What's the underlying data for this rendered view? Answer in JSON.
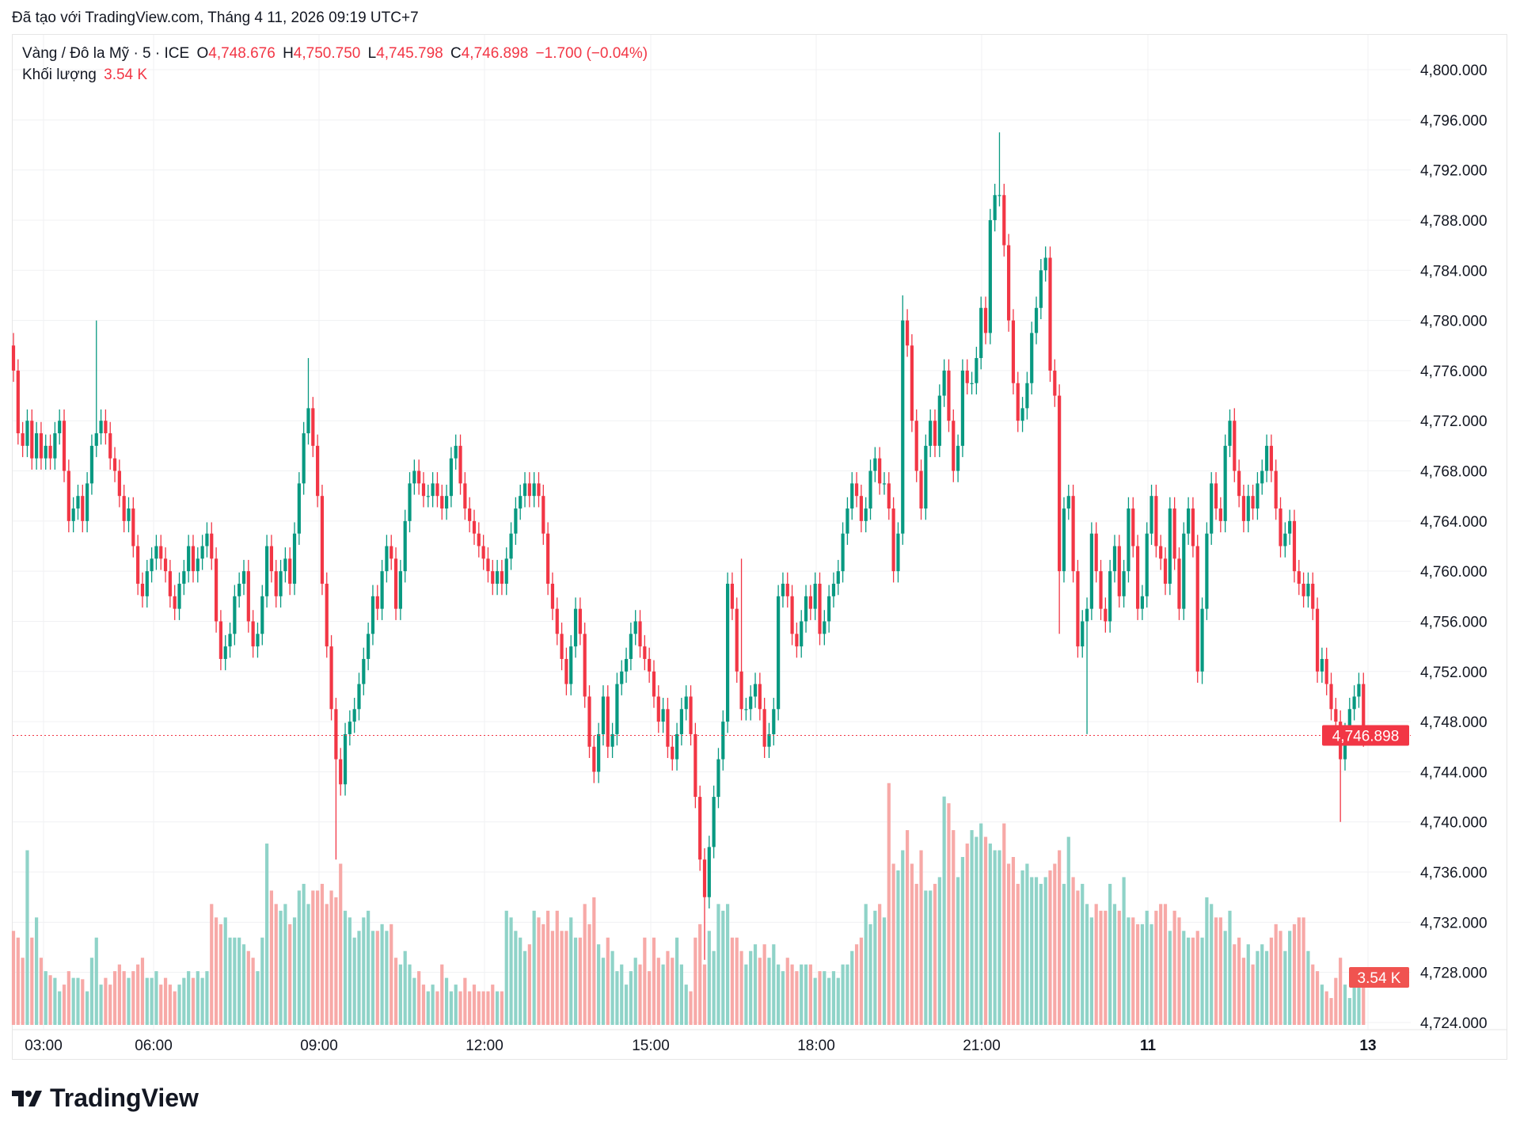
{
  "credit": "Đã tạo với TradingView.com, Tháng 4 11, 2026 09:19 UTC+7",
  "legend": {
    "symbol": "Vàng / Đô la Mỹ · 5 · ICE",
    "o_label": "O",
    "o_value": "4,748.676",
    "h_label": "H",
    "h_value": "4,750.750",
    "l_label": "L",
    "l_value": "4,745.798",
    "c_label": "C",
    "c_value": "4,746.898",
    "change": "−1.700 (−0.04%)",
    "volume_label": "Khối lượng",
    "volume_value": "3.54 K"
  },
  "logo_text": "TradingView",
  "colors": {
    "up": "#089981",
    "down": "#f23645",
    "up_volume": "#8fd3c8",
    "down_volume": "#f7a9a7",
    "last_price_bg": "#f23645",
    "volume_label_bg": "#f05350"
  },
  "chart_data": {
    "type": "candlestick",
    "interval": "5",
    "price_axis": {
      "labels": [
        "4,800.000",
        "4,796.000",
        "4,792.000",
        "4,788.000",
        "4,784.000",
        "4,780.000",
        "4,776.000",
        "4,772.000",
        "4,768.000",
        "4,764.000",
        "4,760.000",
        "4,756.000",
        "4,752.000",
        "4,748.000",
        "4,744.000",
        "4,740.000",
        "4,736.000",
        "4,732.000",
        "4,728.000",
        "4,724.000"
      ],
      "ylim": [
        4724,
        4800
      ]
    },
    "time_axis": {
      "labels": [
        "03:00",
        "06:00",
        "09:00",
        "12:00",
        "15:00",
        "18:00",
        "21:00",
        "11",
        "13"
      ]
    },
    "last_price": 4746.898,
    "last_price_label": "4,746.898",
    "volume_label": "3.54 K",
    "grid": true,
    "first_open": 4778,
    "closes": [
      4776,
      4771,
      4770,
      4772,
      4769,
      4771,
      4769,
      4770,
      4769,
      4771,
      4772,
      4768,
      4764,
      4765,
      4766,
      4764,
      4767,
      4770,
      4771,
      4772,
      4771,
      4769,
      4768,
      4766,
      4764,
      4765,
      4762,
      4759,
      4758,
      4760,
      4761,
      4762,
      4761,
      4760,
      4758,
      4757,
      4759,
      4760,
      4762,
      4760,
      4761,
      4762,
      4763,
      4761,
      4756,
      4753,
      4754,
      4755,
      4758,
      4759,
      4760,
      4756,
      4754,
      4755,
      4758,
      4762,
      4760,
      4758,
      4760,
      4761,
      4759,
      4763,
      4767,
      4771,
      4773,
      4770,
      4766,
      4759,
      4754,
      4749,
      4745,
      4743,
      4747,
      4748,
      4749,
      4751,
      4753,
      4755,
      4758,
      4757,
      4760,
      4762,
      4761,
      4757,
      4760,
      4764,
      4767,
      4768,
      4767,
      4766,
      4766,
      4767,
      4766,
      4765,
      4766,
      4769,
      4770,
      4767,
      4765,
      4764,
      4763,
      4762,
      4761,
      4760,
      4759,
      4760,
      4759,
      4761,
      4763,
      4765,
      4766,
      4767,
      4766,
      4767,
      4766,
      4763,
      4759,
      4757,
      4755,
      4753,
      4751,
      4754,
      4757,
      4755,
      4750,
      4746,
      4744,
      4747,
      4750,
      4746,
      4747,
      4751,
      4752,
      4753,
      4755,
      4756,
      4754,
      4753,
      4752,
      4750,
      4748,
      4749,
      4746,
      4745,
      4747,
      4749,
      4750,
      4747,
      4742,
      4737,
      4734,
      4738,
      4742,
      4745,
      4748,
      4759,
      4757,
      4752,
      4749,
      4749,
      4750,
      4751,
      4749,
      4746,
      4747,
      4749,
      4758,
      4759,
      4758,
      4755,
      4754,
      4756,
      4758,
      4757,
      4759,
      4755,
      4756,
      4758,
      4759,
      4760,
      4763,
      4765,
      4767,
      4766,
      4764,
      4765,
      4768,
      4769,
      4767,
      4767,
      4765,
      4760,
      4763,
      4780,
      4778,
      4772,
      4768,
      4765,
      4770,
      4772,
      4770,
      4774,
      4776,
      4772,
      4768,
      4770,
      4776,
      4775,
      4775,
      4777,
      4781,
      4779,
      4788,
      4790,
      4790,
      4786,
      4780,
      4775,
      4772,
      4773,
      4775,
      4779,
      4781,
      4784,
      4785,
      4776,
      4774,
      4760,
      4765,
      4766,
      4760,
      4754,
      4756,
      4757,
      4763,
      4760,
      4757,
      4756,
      4760,
      4762,
      4758,
      4760,
      4765,
      4762,
      4757,
      4758,
      4763,
      4766,
      4762,
      4761,
      4759,
      4765,
      4761,
      4757,
      4763,
      4765,
      4762,
      4752,
      4757,
      4763,
      4767,
      4765,
      4764,
      4770,
      4772,
      4768,
      4766,
      4764,
      4766,
      4765,
      4767,
      4768,
      4770,
      4768,
      4765,
      4762,
      4763,
      4764,
      4760,
      4759,
      4758,
      4759,
      4757,
      4752,
      4753,
      4751,
      4749,
      4748,
      4745,
      4747,
      4749,
      4750,
      4751,
      4746.898
    ],
    "wick_extremes": [
      {
        "bar": 0,
        "high": 4779
      },
      {
        "bar": 18,
        "high": 4780
      },
      {
        "bar": 64,
        "high": 4777
      },
      {
        "bar": 70,
        "low": 4737
      },
      {
        "bar": 150,
        "low": 4729
      },
      {
        "bar": 158,
        "high": 4761
      },
      {
        "bar": 193,
        "high": 4782
      },
      {
        "bar": 214,
        "high": 4795
      },
      {
        "bar": 227,
        "low": 4755
      },
      {
        "bar": 233,
        "low": 4747
      },
      {
        "bar": 258,
        "low": 4751
      },
      {
        "bar": 265,
        "high": 4773
      },
      {
        "bar": 288,
        "low": 4740
      }
    ],
    "volumes_k": [
      7,
      6.5,
      5,
      13,
      6.5,
      8,
      5,
      4,
      3.7,
      3.5,
      2.5,
      3,
      4,
      3.5,
      3.5,
      3.4,
      2.5,
      5,
      6.5,
      3,
      3.5,
      3,
      4,
      4.5,
      4,
      3.5,
      4,
      4.5,
      5,
      3.5,
      3.5,
      4,
      3,
      3.5,
      3,
      2.5,
      3,
      3.5,
      4,
      3.5,
      4,
      3.5,
      4,
      9,
      8,
      7.5,
      8,
      6.5,
      6.5,
      6.5,
      6,
      5.5,
      5,
      4,
      6.5,
      13.5,
      10,
      9,
      8.5,
      9,
      7.5,
      8,
      10,
      10.5,
      9,
      10,
      10,
      10.5,
      9,
      10,
      9.5,
      12,
      8.5,
      8,
      6.5,
      7,
      8,
      8.5,
      7,
      7,
      7.5,
      7,
      7.5,
      5,
      4.5,
      5.5,
      4.5,
      3.5,
      4,
      3,
      2.5,
      3,
      2.5,
      4.5,
      3.5,
      2.5,
      3,
      2.5,
      3.5,
      2.5,
      3,
      2.5,
      2.5,
      2.5,
      3,
      2.5,
      2.5,
      8.5,
      8,
      7,
      6.5,
      5.5,
      6,
      8.5,
      8,
      7.5,
      8.5,
      7,
      8.5,
      7,
      7,
      8,
      6.5,
      6.5,
      9,
      7.5,
      9.5,
      6,
      5,
      6.5,
      5.5,
      4,
      4.5,
      3,
      4,
      5,
      4.5,
      6.5,
      4,
      6.5,
      5,
      4.5,
      5.5,
      5,
      6.5,
      4.5,
      3,
      2.5,
      6.5,
      7.5,
      4.5,
      7,
      5.5,
      9,
      8.5,
      9,
      6.5,
      6.5,
      5.5,
      4.5,
      5.5,
      6,
      5,
      6,
      5,
      6,
      4.5,
      4,
      5,
      4.5,
      4,
      4.5,
      4.5,
      4.5,
      3.5,
      4,
      4,
      3.5,
      4,
      3.5,
      4.5,
      4.5,
      5.5,
      6,
      6.5,
      9,
      7.5,
      8.5,
      9,
      8,
      18,
      12,
      11.5,
      13,
      14.5,
      12,
      10.5,
      13,
      10,
      10,
      10.5,
      11,
      17,
      16.5,
      14.5,
      11,
      12.5,
      13.5,
      14.5,
      14,
      15,
      14,
      13.5,
      13,
      13,
      15,
      12,
      12.5,
      10.5,
      11.5,
      12,
      11,
      11,
      10.5,
      11,
      11.5,
      12,
      13,
      10.5,
      14,
      11,
      10,
      10.5,
      9,
      8,
      9,
      8.5,
      8.5,
      10.5,
      9,
      8.5,
      11,
      8,
      8,
      7.5,
      7.5,
      8.5,
      7.5,
      8.5,
      9,
      9,
      7,
      8.5,
      8,
      7,
      6.5,
      6.5,
      7,
      6.5,
      9.5,
      9,
      8,
      8,
      7,
      8.5,
      6,
      6.5,
      5,
      6,
      4.5,
      5.5,
      6,
      5.5,
      6.5,
      7.5,
      7,
      5.5,
      7,
      7.5,
      8,
      8,
      5.5,
      4.5,
      4,
      3,
      2.5,
      2,
      3.5,
      5,
      3,
      2,
      4,
      4,
      3.54
    ]
  }
}
